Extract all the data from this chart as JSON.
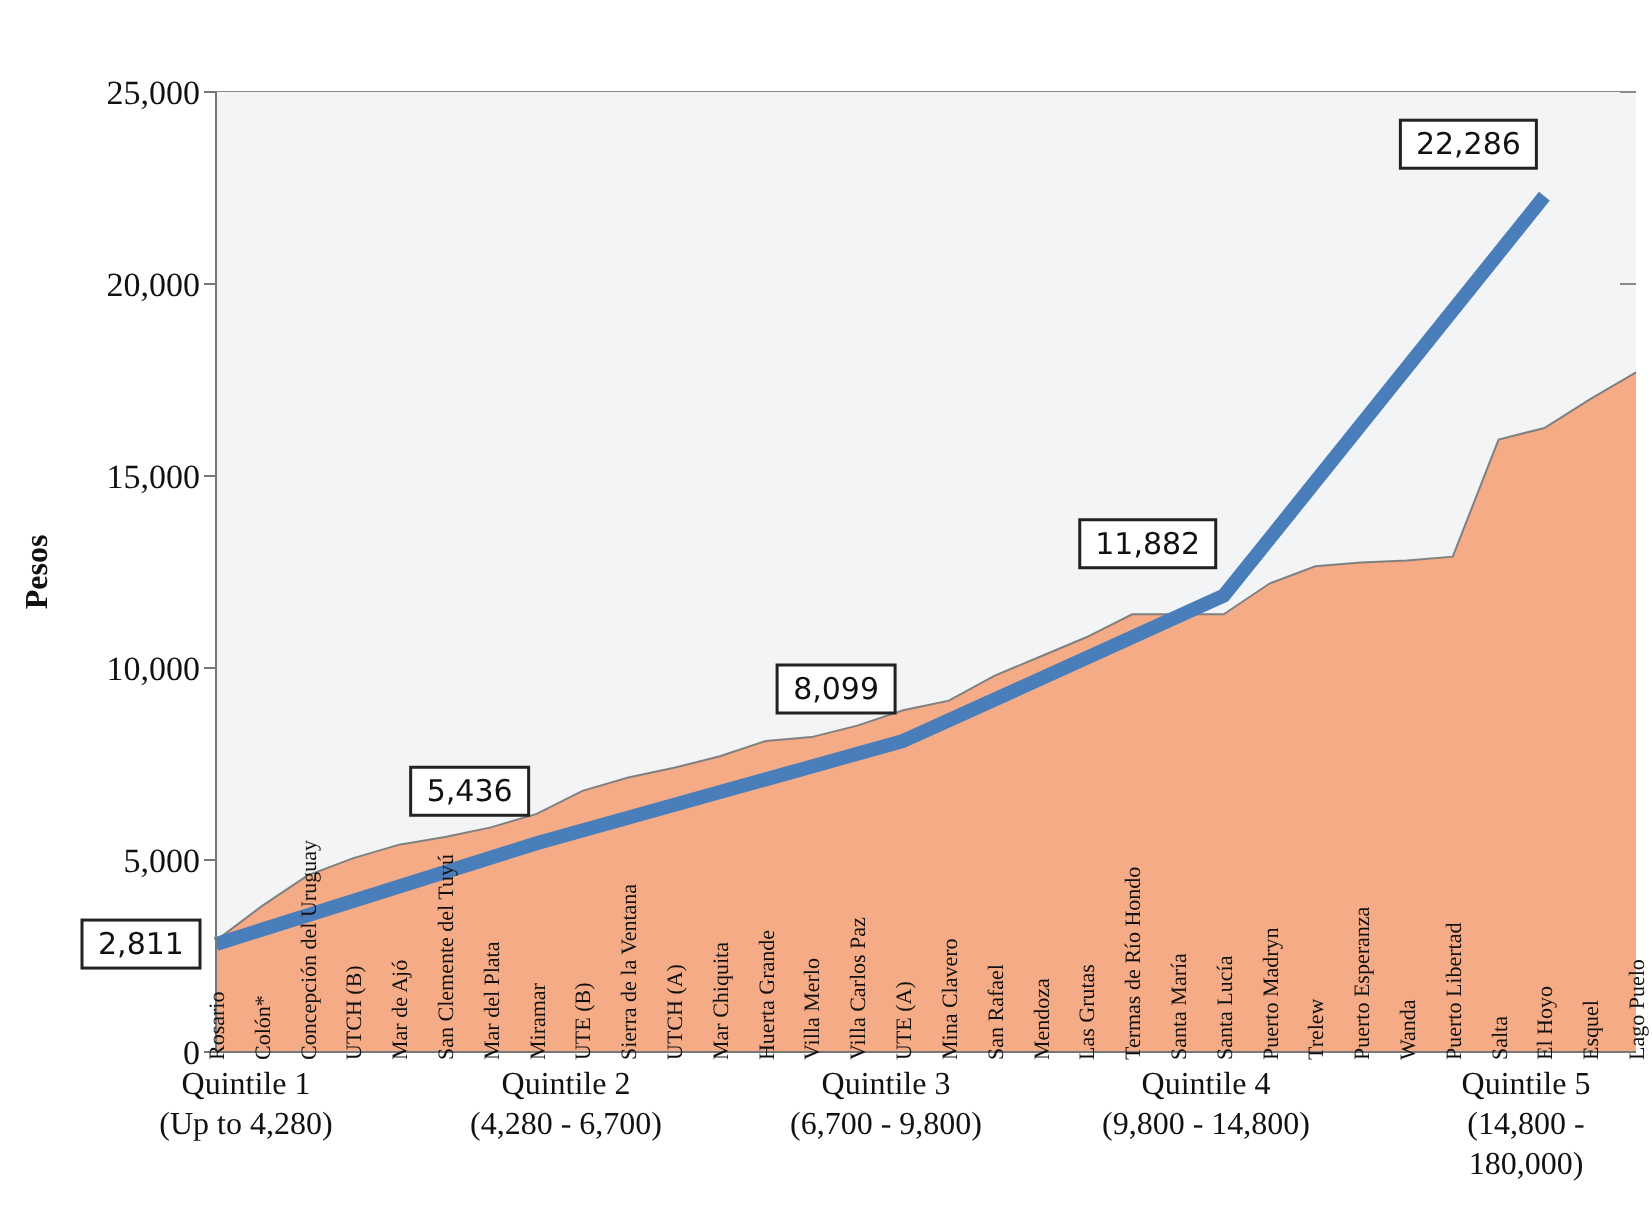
{
  "chart_data": {
    "type": "area",
    "ylabel": "Pesos",
    "categories": [
      "Rosario",
      "Colón*",
      "Concepción del Uruguay",
      "UTCH (B)",
      "Mar de Ajó",
      "San Clemente del Tuyú",
      "Mar del Plata",
      "Miramar",
      "UTE (B)",
      "Sierra de la Ventana",
      "UTCH (A)",
      "Mar Chiquita",
      "Huerta Grande",
      "Villa Merlo",
      "Villa Carlos Paz",
      "UTE (A)",
      "Mina Clavero",
      "San Rafael",
      "Mendoza",
      "Las Grutas",
      "Termas de Río Hondo",
      "Santa María",
      "Santa Lucía",
      "Puerto Madryn",
      "Trelew",
      "Puerto Esperanza",
      "Wanda",
      "Puerto Libertad",
      "Salta",
      "El Hoyo",
      "Esquel",
      "Lago Puelo"
    ],
    "series": [
      {
        "color": "#f4ab86",
        "values": [
          2900,
          3800,
          4600,
          5050,
          5400,
          5600,
          5850,
          6200,
          6800,
          7150,
          7400,
          7700,
          8100,
          8200,
          8500,
          8900,
          9150,
          9800,
          10300,
          10800,
          11400,
          11400,
          11400,
          12200,
          12650,
          12750,
          12800,
          12900,
          15950,
          16250,
          17000,
          17700
        ]
      },
      {
        "type": "line",
        "color": "#4a7ebb",
        "values": [
          2811,
          null,
          null,
          null,
          null,
          null,
          null,
          5436,
          null,
          null,
          null,
          null,
          null,
          null,
          null,
          8099,
          null,
          null,
          null,
          null,
          null,
          null,
          11882,
          null,
          null,
          null,
          null,
          null,
          null,
          22286,
          null,
          null
        ],
        "value_labels": [
          "2,811",
          null,
          null,
          null,
          null,
          null,
          null,
          "5,436",
          null,
          null,
          null,
          null,
          null,
          null,
          null,
          "8,099",
          null,
          null,
          null,
          null,
          null,
          null,
          "11,882",
          null,
          null,
          null,
          null,
          null,
          null,
          "22,286",
          null,
          null
        ]
      }
    ],
    "ylim": [
      0,
      25000
    ],
    "yticks": [
      0,
      {
        "value": 5000,
        "label": "5,000"
      },
      {
        "value": 10000,
        "label": "10,000"
      },
      {
        "value": 15000,
        "label": "15,000"
      },
      {
        "value": 20000,
        "label": "20,000"
      },
      {
        "value": 25000,
        "label": "25,000"
      }
    ],
    "grid": "y",
    "annotations": [
      "Quintile 1\n(Up to 4,280)",
      "Quintile 2\n(4,280 - 6,700)",
      "Quintile 3\n(6,700 - 9,800)",
      "Quintile 4\n(9,800 - 14,800)",
      "Quintile 5\n(14,800 -\n180,000)"
    ]
  }
}
